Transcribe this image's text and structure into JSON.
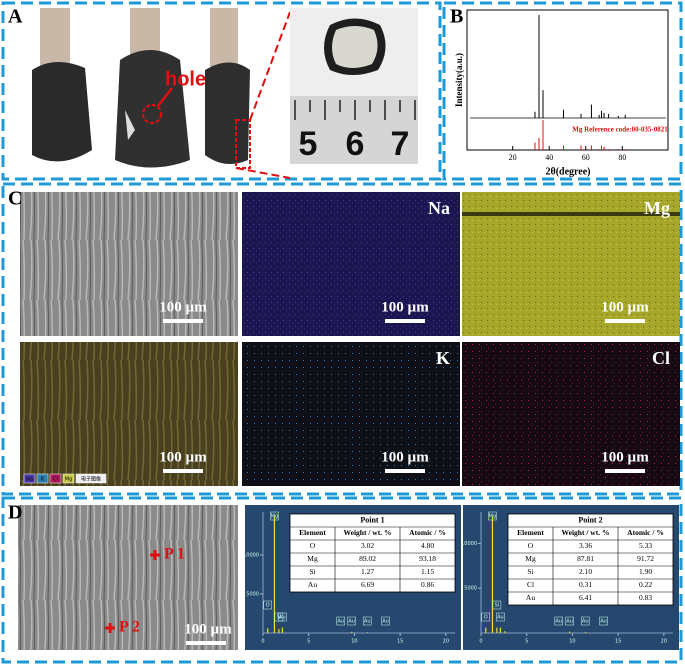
{
  "panels": {
    "a": {
      "label": "A",
      "annotation": "hole",
      "ruler": [
        "5",
        "6",
        "7"
      ]
    },
    "b": {
      "label": "B",
      "y_label": "Intensity(a.u.)",
      "x_label": "2θ(degree)",
      "xlim": [
        -5,
        105
      ],
      "xticks": [
        20,
        40,
        60,
        80
      ],
      "ylim": [
        0,
        100
      ],
      "peaks": {
        "x": [
          32.2,
          34.4,
          36.6,
          47.8,
          57.4,
          63.1,
          67.3,
          68.6,
          70.0,
          72.5,
          77.8,
          81.6
        ],
        "values": [
          6,
          100,
          27,
          8,
          4,
          13,
          3,
          7,
          5,
          4,
          2,
          3
        ]
      },
      "reference_label": "Mg Reference code:00-035-0821",
      "reference": {
        "x": [
          32.2,
          34.4,
          36.6,
          47.8,
          57.4,
          63.1,
          67.3,
          68.6,
          70.0,
          72.5,
          77.8,
          81.6
        ],
        "values": [
          25,
          40,
          100,
          15,
          15,
          15,
          3,
          15,
          10,
          3,
          3,
          3
        ]
      }
    },
    "c": {
      "label": "C",
      "maps": [
        {
          "scale_bar": "100 µm"
        },
        {
          "element": "Na",
          "scale_bar": "100 µm"
        },
        {
          "element": "Mg",
          "scale_bar": "100 µm"
        },
        {
          "scale_bar": "100 µm",
          "legend": [
            "Na",
            "K",
            "Cl",
            "Mg",
            "电子图像"
          ]
        },
        {
          "element": "K",
          "scale_bar": "100 µm"
        },
        {
          "element": "Cl",
          "scale_bar": "100 µm"
        }
      ]
    },
    "d": {
      "label": "D",
      "points": [
        "P 1",
        "P 2"
      ],
      "scale_bar": "100 µm",
      "spectra": [
        {
          "title": "Point 1",
          "columns": [
            "Element",
            "Weight / wt. %",
            "Atomic /  %"
          ],
          "rows": [
            [
              "O",
              "3.02",
              "4.80"
            ],
            [
              "Mg",
              "89.02",
              "93.18"
            ],
            [
              "Si",
              "1.27",
              "1.15"
            ],
            [
              "Au",
              "6.69",
              "0.86"
            ]
          ],
          "xlim": [
            0,
            21
          ],
          "xticks": [
            0,
            5,
            10,
            15,
            20
          ],
          "ylim": [
            0,
            15500
          ],
          "yticks": [
            5000,
            10000
          ],
          "peaks": {
            "x": [
              0.52,
              1.25,
              1.74,
              2.12,
              9.71,
              11.44
            ],
            "values": [
              600,
              15000,
              500,
              700,
              150,
              100
            ]
          },
          "peak_labels": [
            {
              "text": "Mg",
              "x": 1.25
            },
            {
              "text": "Au",
              "x": 2.12
            },
            {
              "text": "O",
              "x": 0.52
            },
            {
              "text": "Si",
              "x": 1.74
            },
            {
              "text": "Au",
              "x": 8.5
            },
            {
              "text": "Au",
              "x": 9.7
            },
            {
              "text": "Au",
              "x": 11.4
            },
            {
              "text": "Au",
              "x": 13.4
            }
          ]
        },
        {
          "title": "Point 2",
          "columns": [
            "Element",
            "Weight / wt. %",
            "Atomic /  %"
          ],
          "rows": [
            [
              "O",
              "3.36",
              "5.33"
            ],
            [
              "Mg",
              "87.81",
              "91.72"
            ],
            [
              "Si",
              "2.10",
              "1.90"
            ],
            [
              "Cl",
              "0.31",
              "0.22"
            ],
            [
              "Au",
              "6.41",
              "0.83"
            ]
          ],
          "xlim": [
            0,
            21
          ],
          "xticks": [
            0,
            5,
            10,
            15,
            20
          ],
          "ylim": [
            0,
            13500
          ],
          "yticks": [
            5000,
            10000
          ],
          "peaks": {
            "x": [
              0.52,
              1.25,
              1.74,
              2.12,
              2.62,
              9.71,
              11.44
            ],
            "values": [
              600,
              13000,
              600,
              600,
              200,
              150,
              100
            ]
          },
          "peak_labels": [
            {
              "text": "Mg",
              "x": 1.25
            },
            {
              "text": "O",
              "x": 0.52
            },
            {
              "text": "Si",
              "x": 1.74
            },
            {
              "text": "Au",
              "x": 2.12
            },
            {
              "text": "Au",
              "x": 8.5
            },
            {
              "text": "Au",
              "x": 9.7
            },
            {
              "text": "Au",
              "x": 11.4
            },
            {
              "text": "Au",
              "x": 13.4
            }
          ]
        }
      ]
    }
  }
}
